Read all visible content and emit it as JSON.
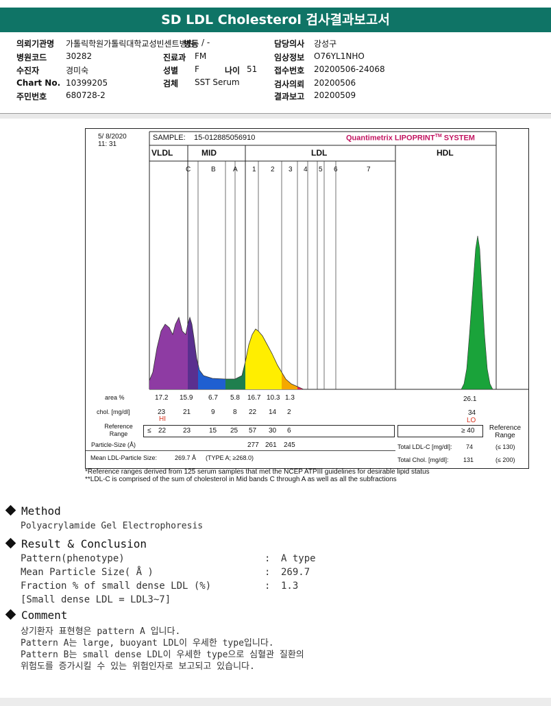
{
  "title": "SD LDL Cholesterol 검사결과보고서",
  "info": {
    "hospital_label": "의뢰기관명",
    "hospital_value": "가톨릭학원가톨릭대학교성빈센트병원",
    "ward_label": "병동",
    "ward_value": "/ -",
    "code_label": "병원코드",
    "code_value": "30282",
    "patient_label": "수진자",
    "patient_value": "경미숙",
    "chart_label": "Chart No.",
    "chart_value": "10399205",
    "resident_label": "주민번호",
    "resident_value": "680728-2",
    "dept_label": "진료과",
    "dept_value": "FM",
    "sex_label": "성별",
    "sex_value": "F",
    "age_label": "나이",
    "age_value": "51",
    "specimen_label": "검체",
    "specimen_value": "SST Serum",
    "doctor_label": "담당의사",
    "doctor_value": "강성구",
    "clinical_label": "임상정보",
    "clinical_value": "O76YL1NHO",
    "receipt_label": "접수번호",
    "receipt_value": "20200506-24068",
    "request_label": "검사의뢰",
    "request_value": "20200506",
    "report_label": "결과보고",
    "report_value": "20200509"
  },
  "chart": {
    "date": "5/ 8/2020",
    "time": "11: 31",
    "sample_label": "SAMPLE:",
    "sample_id": "15-012885056910",
    "brand": "Quantimetrix LIPOPRINT",
    "brand_tm": "TM",
    "brand_suffix": " SYSTEM",
    "groups": [
      "VLDL",
      "MID",
      "LDL",
      "HDL"
    ],
    "bands": [
      "C",
      "B",
      "A",
      "1",
      "2",
      "3",
      "4",
      "5",
      "6",
      "7"
    ],
    "area_label": "area %",
    "area": [
      "17.2",
      "15.9",
      "6.7",
      "5.8",
      "16.7",
      "10.3",
      "1.3"
    ],
    "hdl_area": "26.1",
    "chol_label": "chol. [mg/dl]",
    "chol": [
      "23",
      "21",
      "9",
      "8",
      "22",
      "14",
      "2"
    ],
    "hdl_chol": "34",
    "hi_flag": "HI",
    "lo_flag": "LO",
    "ref_label": "Reference Range",
    "ref_prefix": "≤",
    "ref": [
      "22",
      "23",
      "15",
      "25",
      "57",
      "30",
      "6"
    ],
    "hdl_ref": "≥ 40",
    "ref_right": "Reference Range",
    "particle_label": "Particle-Size (Å)",
    "particle": [
      "277",
      "261",
      "245"
    ],
    "mean_label": "Mean LDL-Particle Size:",
    "mean_value": "269.7 Å",
    "mean_type": "(TYPE A; ≥268.0)",
    "total_ldl_label": "Total LDL-C [mg/dl]:",
    "total_ldl_value": "74",
    "total_ldl_ref": "(≤ 130)",
    "total_chol_label": "Total Chol. [mg/dl]:",
    "total_chol_value": "131",
    "total_chol_ref": "(≤ 200)",
    "colors": {
      "vldl": "#8e3ba3",
      "midc": "#5a2f8f",
      "midb": "#1f5fd1",
      "mida": "#1f7f4e",
      "ldl1": "#ffee00",
      "ldl2": "#f5a800",
      "ldl3": "#e0245c",
      "hdl": "#1aa33a"
    }
  },
  "notes": {
    "n1": "*Reference ranges derived from 125 serum samples that met the NCEP ATPIII guidelines for desirable lipid status",
    "n2": "**LDL-C is comprised of the sum of cholesterol in Mid bands C through A as well as all the subfractions"
  },
  "method": {
    "title": "Method",
    "text": "Polyacrylamide Gel Electrophoresis"
  },
  "result": {
    "title": "Result & Conclusion",
    "rows": [
      {
        "label": "Pattern(phenotype)",
        "value": "A type"
      },
      {
        "label": "Mean Particle Size( Å )",
        "value": "269.7"
      },
      {
        "label": "Fraction % of small dense LDL (%)",
        "value": "1.3"
      }
    ],
    "sep": ":",
    "footnote": "[Small dense LDL = LDL3~7]"
  },
  "comment": {
    "title": "Comment",
    "lines": [
      "상기환자 표현형은 pattern A 입니다.",
      "Pattern A는 large, buoyant LDL이 우세한 type입니다.",
      "Pattern B는 small dense LDL이 우세한 type으로 심혈관 질환의",
      "위험도를 증가시킬 수 있는 위험인자로 보고되고 있습니다."
    ]
  }
}
